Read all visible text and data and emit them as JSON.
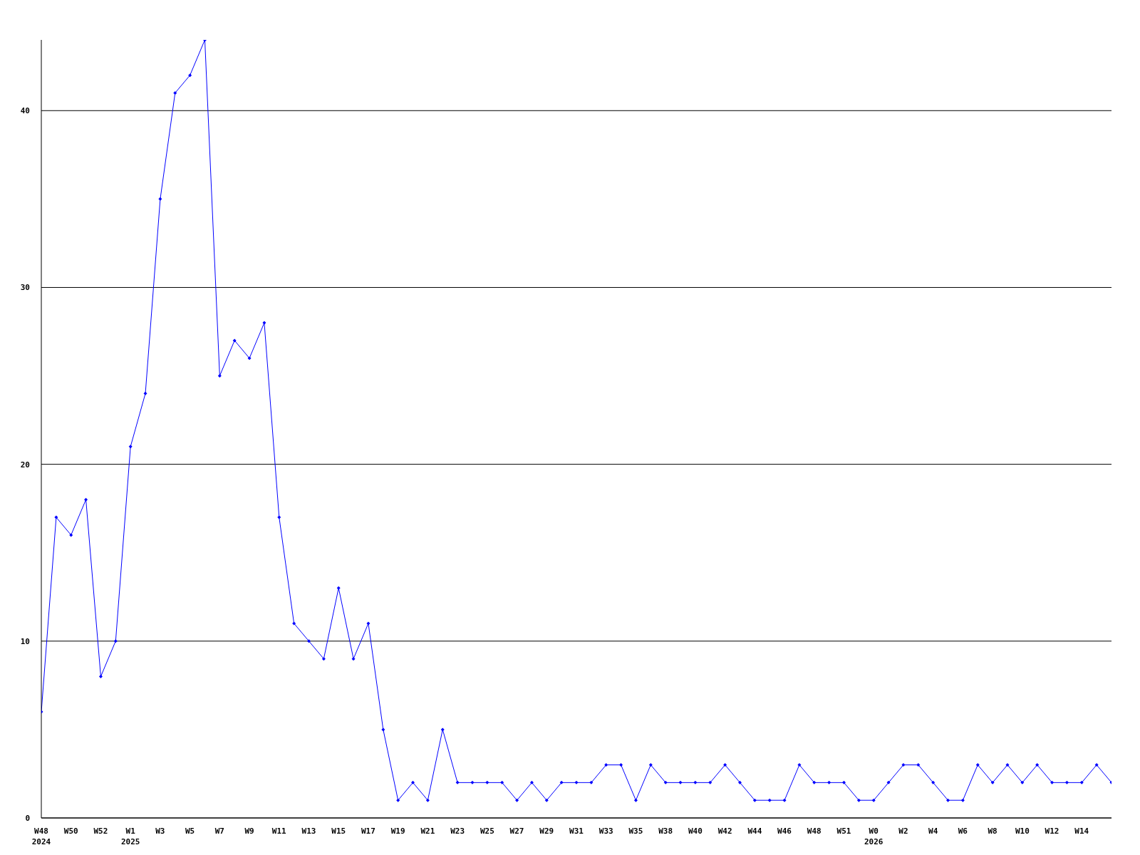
{
  "chart_data": {
    "type": "line",
    "categories": [
      "W48\n2024",
      null,
      "W50",
      null,
      "W52",
      null,
      "W1\n2025",
      null,
      "W3",
      null,
      "W5",
      null,
      "W7",
      null,
      "W9",
      null,
      "W11",
      null,
      "W13",
      null,
      "W15",
      null,
      "W17",
      null,
      "W19",
      null,
      "W21",
      null,
      "W23",
      null,
      "W25",
      null,
      "W27",
      null,
      "W29",
      null,
      "W31",
      null,
      "W33",
      null,
      "W35",
      null,
      "W38",
      null,
      "W40",
      null,
      "W42",
      null,
      "W44",
      null,
      "W46",
      null,
      "W48",
      null,
      "W51",
      null,
      "W0\n2026",
      null,
      "W2",
      null,
      "W4",
      null,
      "W6",
      null,
      "W8",
      null,
      "W10",
      null,
      "W12",
      null,
      "W14",
      null,
      null
    ],
    "series": [
      {
        "color": "#0000ff",
        "values": [
          6,
          17,
          16,
          18,
          8,
          10,
          21,
          24,
          35,
          41,
          42,
          44,
          25,
          27,
          26,
          28,
          17,
          11,
          10,
          9,
          13,
          9,
          11,
          5,
          1,
          2,
          1,
          5,
          2,
          2,
          2,
          2,
          1,
          2,
          1,
          2,
          2,
          2,
          3,
          3,
          1,
          3,
          2,
          2,
          2,
          2,
          3,
          2,
          1,
          1,
          1,
          3,
          2,
          2,
          2,
          1,
          1,
          2,
          3,
          3,
          2,
          1,
          1,
          3,
          2,
          3,
          2,
          3,
          2,
          2,
          2,
          3,
          2
        ]
      }
    ],
    "ylim": [
      0,
      44
    ],
    "yticks": [
      0,
      10,
      20,
      30,
      40
    ],
    "grid": "y",
    "marker": "diamond",
    "line_style": "solid",
    "legend": false
  }
}
